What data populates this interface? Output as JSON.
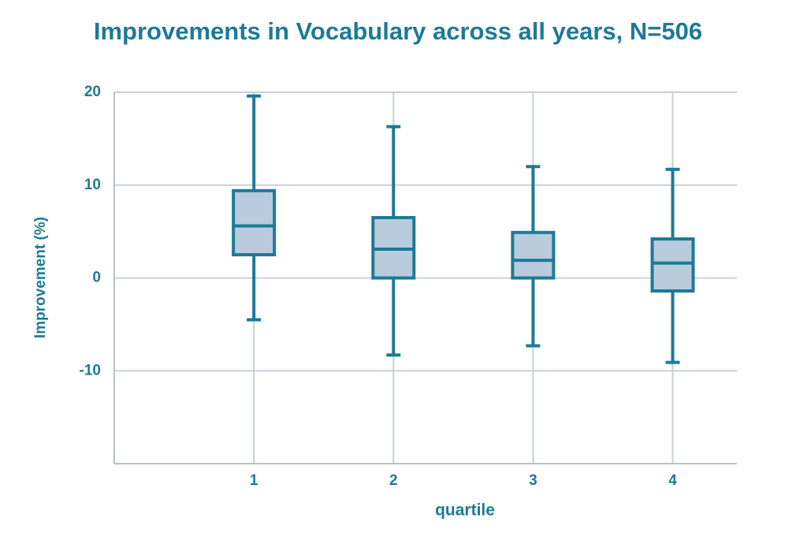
{
  "chart_data": {
    "type": "box",
    "title": "Improvements in Vocabulary across all years, N=506",
    "x_label": "quartile",
    "y_label": "Improvement (%)",
    "boxes": [
      {
        "x": 1,
        "whislo": -4.5,
        "q1": 2.5,
        "med": 5.6,
        "q3": 9.4,
        "whishi": 19.6
      },
      {
        "x": 2,
        "whislo": -8.3,
        "q1": 0,
        "med": 3.1,
        "q3": 6.5,
        "whishi": 16.3
      },
      {
        "x": 3,
        "whislo": -7.3,
        "q1": 0,
        "med": 1.9,
        "q3": 4.9,
        "whishi": 12
      },
      {
        "x": 4,
        "whislo": -9.1,
        "q1": -1.4,
        "med": 1.6,
        "q3": 4.2,
        "whishi": 11.7
      }
    ],
    "color": "#1d7a96",
    "fill": "#b9cbdc",
    "xlim": [
      0,
      4.46
    ],
    "xticks": [
      1,
      2,
      3,
      4
    ],
    "ylim": [
      -20,
      20
    ],
    "yticks": [
      -10,
      0,
      10,
      20
    ],
    "grid": true
  }
}
